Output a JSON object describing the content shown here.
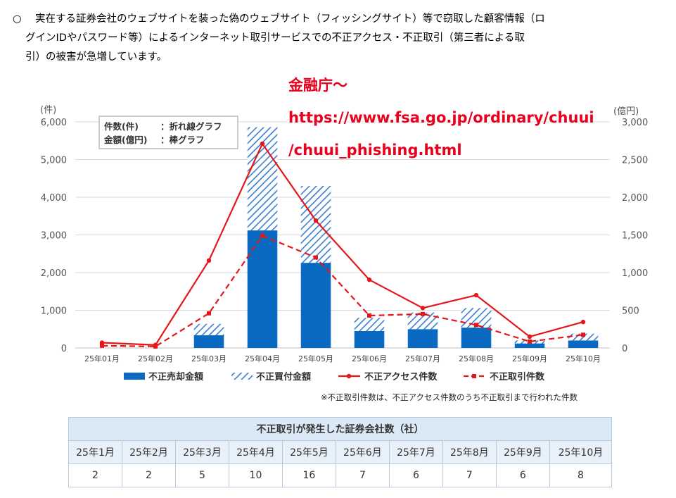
{
  "intro": {
    "mark": "○",
    "line1": "実在する証券会社のウェブサイトを装った偽のウェブサイト（フィッシングサイト）等で窃取した顧客情報（ロ",
    "line2": "グインIDやパスワード等）によるインターネット取引サービスでの不正アクセス・不正取引（第三者による取",
    "line3": "引）の被害が急増しています。"
  },
  "source": {
    "label": "金融庁～",
    "url1": "https://www.fsa.go.jp/ordinary/chuui",
    "url2": "/chuui_phishing.html"
  },
  "colors": {
    "bar_solid": "#0a6ac1",
    "hatch": "#3b7fd1",
    "line": "#e5161a",
    "grid": "#d9d9d9",
    "source_text": "#e8001c"
  },
  "chart_data": {
    "type": "bar",
    "left_axis_unit": "(件)",
    "right_axis_unit": "(億円)",
    "left_ticks": [
      "0",
      "1,000",
      "2,000",
      "3,000",
      "4,000",
      "5,000",
      "6,000"
    ],
    "right_ticks": [
      "0",
      "500",
      "1,000",
      "1,500",
      "2,000",
      "2,500",
      "3,000"
    ],
    "ylim_left": [
      0,
      6000
    ],
    "ylim_right": [
      0,
      3000
    ],
    "categories": [
      "25年01月",
      "25年02月",
      "25年03月",
      "25年04月",
      "25年05月",
      "25年06月",
      "25年07月",
      "25年08月",
      "25年09月",
      "25年10月"
    ],
    "box_note": {
      "line1_a": "件数(件)",
      "line1_b": "：折れ線グラフ",
      "line2_a": "金額(億円)",
      "line2_b": "：棒グラフ"
    },
    "series": [
      {
        "name": "不正売却金額",
        "kind": "bar",
        "axis": "right",
        "values": [
          0,
          0,
          170,
          1560,
          1130,
          225,
          250,
          270,
          60,
          100
        ]
      },
      {
        "name": "不正買付金額",
        "kind": "bar_stacked_hatched",
        "axis": "right",
        "values": [
          0,
          0,
          150,
          1370,
          1020,
          175,
          220,
          260,
          40,
          90
        ]
      },
      {
        "name": "不正アクセス件数",
        "kind": "line_solid",
        "axis": "left",
        "values": [
          140,
          80,
          2320,
          5420,
          3380,
          1810,
          1060,
          1400,
          300,
          690
        ]
      },
      {
        "name": "不正取引件数",
        "kind": "line_dashed",
        "axis": "left",
        "values": [
          60,
          40,
          920,
          2980,
          2400,
          860,
          900,
          610,
          170,
          350
        ]
      }
    ],
    "note": "※不正取引件数は、不正アクセス件数のうち不正取引まで行われた件数"
  },
  "table": {
    "title": "不正取引が発生した証券会社数（社）",
    "months": [
      "25年1月",
      "25年2月",
      "25年3月",
      "25年4月",
      "25年5月",
      "25年6月",
      "25年7月",
      "25年8月",
      "25年9月",
      "25年10月"
    ],
    "values": [
      "2",
      "2",
      "5",
      "10",
      "16",
      "7",
      "6",
      "7",
      "6",
      "8"
    ]
  }
}
